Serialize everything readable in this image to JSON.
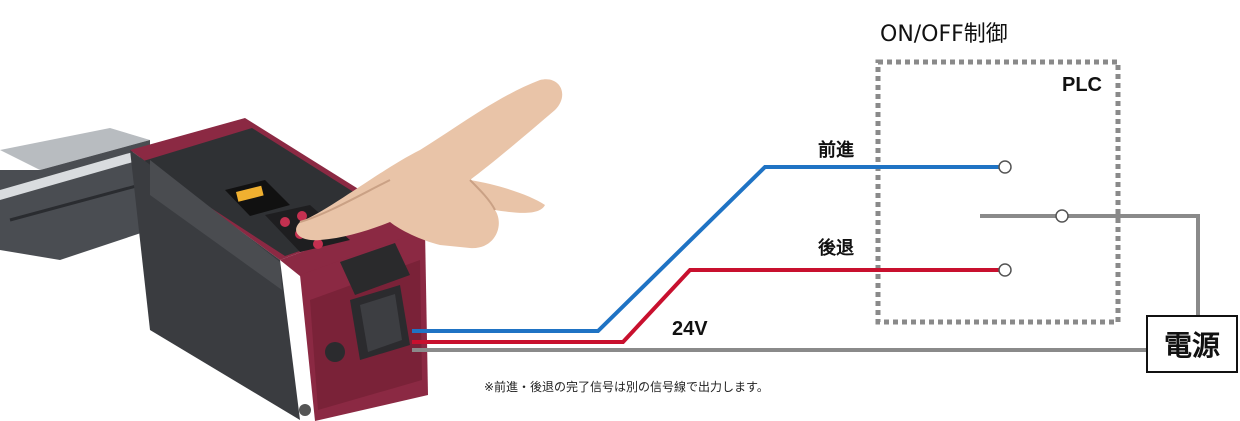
{
  "heading": "ON/OFF制御",
  "plc_label": "PLC",
  "signals": {
    "forward": "前進",
    "backward": "後退",
    "voltage": "24V"
  },
  "power_supply": "電源",
  "note": "※前進・後退の完了信号は別の信号線で出力します。",
  "colors": {
    "forward_wire": "#1f73c4",
    "backward_wire": "#c8102e",
    "common_wire": "#8a8a8a",
    "actuator_body": "#8b2943"
  }
}
